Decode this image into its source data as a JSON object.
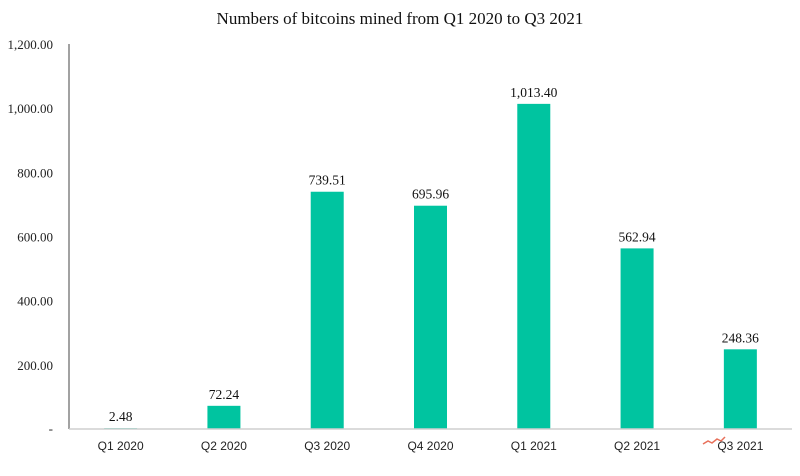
{
  "chart_data": {
    "type": "bar",
    "title": "Numbers of bitcoins mined from Q1 2020 to Q3 2021",
    "xlabel": "",
    "ylabel": "",
    "categories": [
      "Q1 2020",
      "Q2 2020",
      "Q3 2020",
      "Q4 2020",
      "Q1 2021",
      "Q2 2021",
      "Q3 2021"
    ],
    "values": [
      2.48,
      72.24,
      739.51,
      695.96,
      1013.4,
      562.94,
      248.36
    ],
    "data_labels": [
      "2.48",
      "72.24",
      "739.51",
      "695.96",
      "1,013.40",
      "562.94",
      "248.36"
    ],
    "ylim": [
      0,
      1200
    ],
    "yticks": [
      0,
      200,
      400,
      600,
      800,
      1000,
      1200
    ],
    "ytick_labels": [
      "-",
      "200.00",
      "400.00",
      "600.00",
      "800.00",
      "1,000.00",
      "1,200.00"
    ],
    "grid": false,
    "legend": "none",
    "colors": {
      "bar": "#00C4A0",
      "axis": "#444444",
      "baseline": "#cfcfcf"
    }
  }
}
